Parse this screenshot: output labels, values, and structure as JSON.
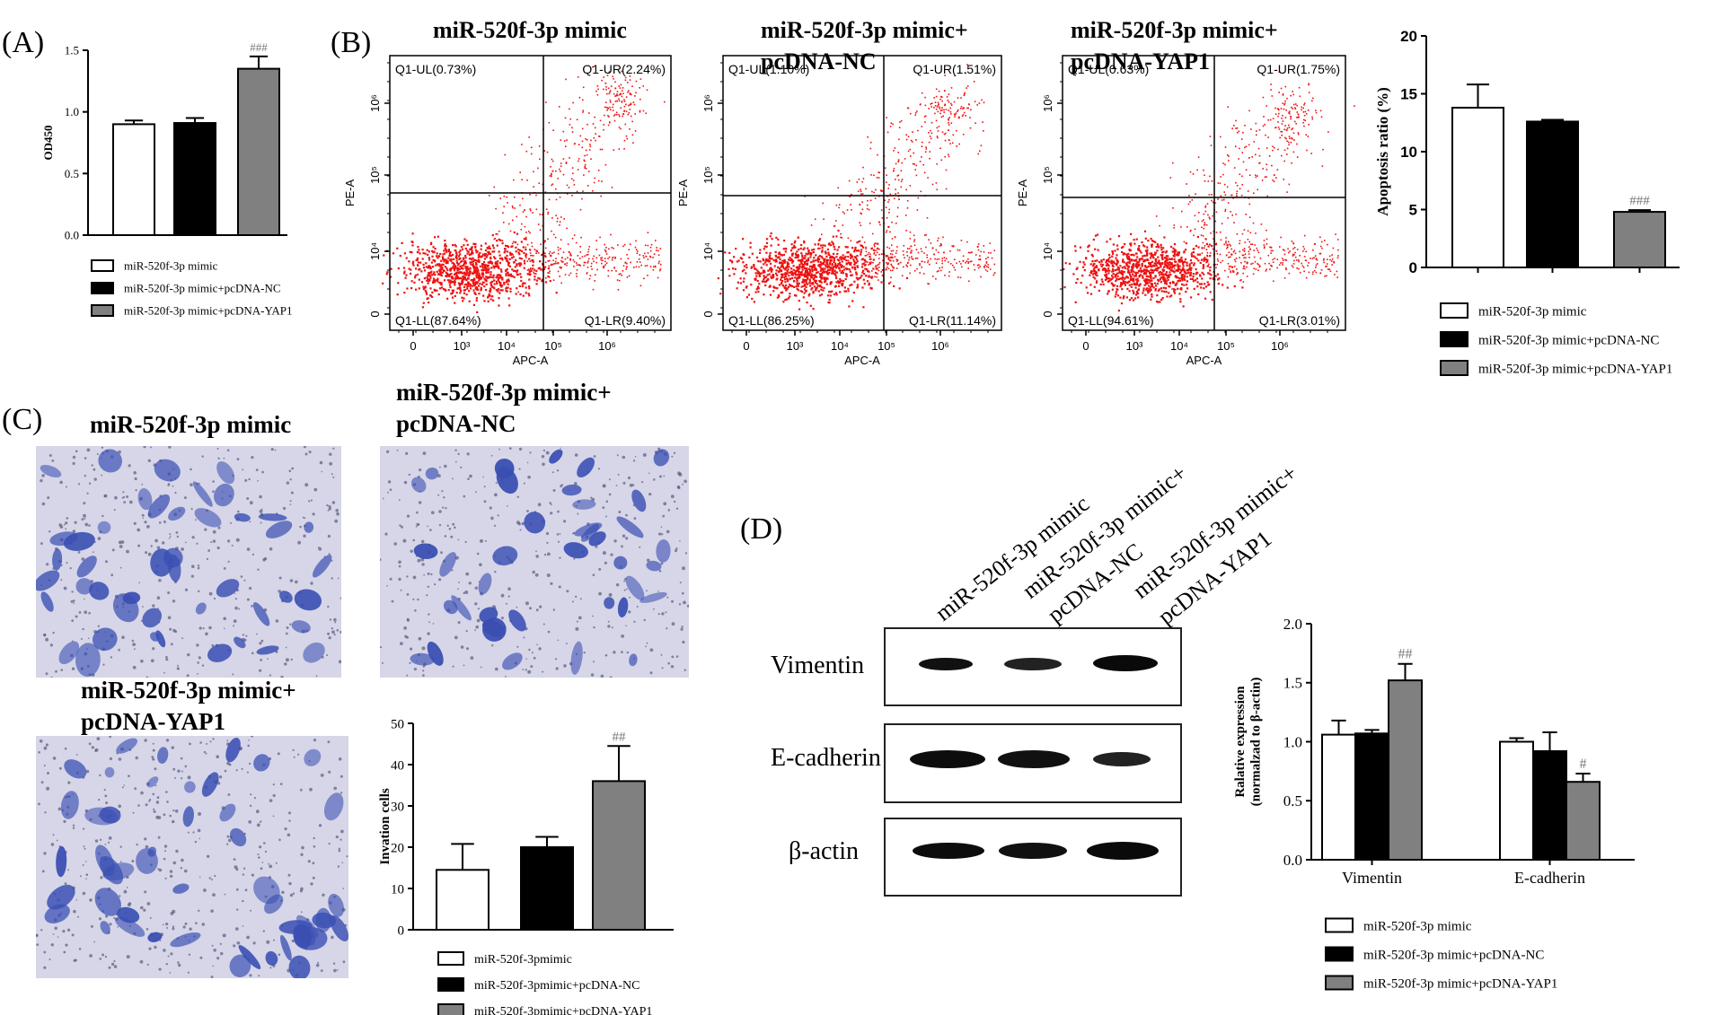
{
  "panel_labels": {
    "A": "(A)",
    "B": "(B)",
    "C": "(C)",
    "D": "(D)"
  },
  "legend_groups": {
    "A": [
      "miR-520f-3p mimic",
      "miR-520f-3p mimic+pcDNA-NC",
      "miR-520f-3p mimic+pcDNA-YAP1"
    ],
    "B": [
      "miR-520f-3p mimic",
      "miR-520f-3p mimic+pcDNA-NC",
      "miR-520f-3p mimic+pcDNA-YAP1"
    ],
    "C": [
      "miR-520f-3pmimic",
      "miR-520f-3pmimic+pcDNA-NC",
      "miR-520f-3pmimic+pcDNA-YAP1"
    ],
    "D": [
      "miR-520f-3p mimic",
      "miR-520f-3p mimic+pcDNA-NC",
      "miR-520f-3p mimic+pcDNA-YAP1"
    ]
  },
  "colors": {
    "group1": "#ffffff",
    "group2": "#000000",
    "group3": "#808080",
    "dots": "#ee1111",
    "stain": "#3a4fb3"
  },
  "flow": {
    "x_axis_label": "APC-A",
    "y_axis_label": "PE-A",
    "x_ticks": [
      "0",
      "10³",
      "10⁴",
      "10⁵",
      "10⁶"
    ],
    "y_ticks": [
      "0",
      "10⁴",
      "10⁵",
      "10⁶"
    ],
    "plots": [
      {
        "title": [
          "miR-520f-3p mimic"
        ],
        "UL": "Q1-UL(0.73%)",
        "UR": "Q1-UR(2.24%)",
        "LL": "Q1-LL(87.64%)",
        "LR": "Q1-LR(9.40%)"
      },
      {
        "title": [
          "miR-520f-3p mimic+",
          "pcDNA-NC"
        ],
        "UL": "Q1-UL(1.10%)",
        "UR": "Q1-UR(1.51%)",
        "LL": "Q1-LL(86.25%)",
        "LR": "Q1-LR(11.14%)"
      },
      {
        "title": [
          "miR-520f-3p mimic+",
          "pcDNA-YAP1"
        ],
        "UL": "Q1-UL(0.63%)",
        "UR": "Q1-UR(1.75%)",
        "LL": "Q1-LL(94.61%)",
        "LR": "Q1-LR(3.01%)"
      }
    ]
  },
  "micro": {
    "titles": [
      [
        "miR-520f-3p mimic"
      ],
      [
        "miR-520f-3p mimic+",
        "pcDNA-NC"
      ],
      [
        "miR-520f-3p mimic+",
        "pcDNA-YAP1"
      ]
    ]
  },
  "western": {
    "lanes": [
      [
        "miR-520f-3p mimic"
      ],
      [
        "miR-520f-3p mimic+",
        "pcDNA-NC"
      ],
      [
        "miR-520f-3p mimic+",
        "pcDNA-YAP1"
      ]
    ],
    "bands": [
      "Vimentin",
      "E-cadherin",
      "β-actin"
    ]
  },
  "chart_data": [
    {
      "id": "A",
      "type": "bar",
      "title": "",
      "xlabel": "",
      "ylabel": "OD450",
      "categories": [
        "miR-520f-3p mimic",
        "miR-520f-3p mimic+pcDNA-NC",
        "miR-520f-3p mimic+pcDNA-YAP1"
      ],
      "values": [
        0.9,
        0.91,
        1.35
      ],
      "errors": [
        0.03,
        0.04,
        0.1
      ],
      "annotations": [
        "",
        "",
        "###"
      ],
      "ylim": [
        0,
        1.5
      ],
      "yticks": [
        "0.0",
        "0.5",
        "1.0",
        "1.5"
      ]
    },
    {
      "id": "B",
      "type": "bar",
      "title": "",
      "xlabel": "",
      "ylabel": "Apoptosis ratio (%)",
      "categories": [
        "miR-520f-3p mimic",
        "miR-520f-3p mimic+pcDNA-NC",
        "miR-520f-3p mimic+pcDNA-YAP1"
      ],
      "values": [
        13.8,
        12.6,
        4.8
      ],
      "errors": [
        2.0,
        0.15,
        0.15
      ],
      "annotations": [
        "",
        "",
        "###"
      ],
      "ylim": [
        0,
        20
      ],
      "yticks": [
        "0",
        "5",
        "10",
        "15",
        "20"
      ]
    },
    {
      "id": "C",
      "type": "bar",
      "title": "",
      "xlabel": "",
      "ylabel": "Invation cells",
      "categories": [
        "miR-520f-3pmimic",
        "miR-520f-3pmimic+pcDNA-NC",
        "miR-520f-3pmimic+pcDNA-YAP1"
      ],
      "values": [
        14.5,
        20.0,
        36.0
      ],
      "errors": [
        6.3,
        2.5,
        8.5
      ],
      "annotations": [
        "",
        "",
        "##"
      ],
      "ylim": [
        0,
        50
      ],
      "yticks": [
        "0",
        "10",
        "20",
        "30",
        "40",
        "50"
      ]
    },
    {
      "id": "D",
      "type": "bar",
      "title": "",
      "xlabel": "",
      "ylabel": "Ralative expression (normalzad to β-actin)",
      "groups": [
        "Vimentin",
        "E-cadherin"
      ],
      "series": [
        {
          "name": "miR-520f-3p mimic",
          "values": [
            1.06,
            1.0
          ],
          "errors": [
            0.12,
            0.03
          ]
        },
        {
          "name": "miR-520f-3p mimic+pcDNA-NC",
          "values": [
            1.07,
            0.92
          ],
          "errors": [
            0.03,
            0.16
          ]
        },
        {
          "name": "miR-520f-3p mimic+pcDNA-YAP1",
          "values": [
            1.52,
            0.66
          ],
          "errors": [
            0.14,
            0.07
          ]
        }
      ],
      "annotations": [
        [
          "",
          "",
          "##"
        ],
        [
          "",
          "",
          "#"
        ]
      ],
      "ylim": [
        0,
        2.0
      ],
      "yticks": [
        "0.0",
        "0.5",
        "1.0",
        "1.5",
        "2.0"
      ]
    }
  ]
}
